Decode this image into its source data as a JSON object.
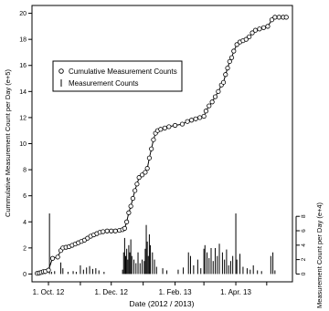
{
  "chart_data": {
    "type": "line",
    "xlabel": "Date (2012 / 2013)",
    "ylabel_left": "Cummulative Measurement Count per Day (e+5)",
    "ylabel_right": "Measurement Count per Day (e+4)",
    "x_ticks": [
      {
        "date": "2012-10-01",
        "label": "1. Oct. 12"
      },
      {
        "date": "2012-12-01",
        "label": "1. Dec. 12"
      },
      {
        "date": "2013-02-01",
        "label": "1. Feb. 13"
      },
      {
        "date": "2013-04-01",
        "label": "1. Apr. 13"
      }
    ],
    "x_minor_ticks": [
      "2012-11-01",
      "2013-01-01",
      "2013-03-01",
      "2013-05-01"
    ],
    "xlim": [
      "2012-09-15",
      "2013-05-26"
    ],
    "ylim_left": [
      -0.6,
      20.6
    ],
    "yticks_left": [
      0,
      2,
      4,
      6,
      8,
      10,
      12,
      14,
      16,
      18,
      20
    ],
    "yticks_right": [
      0,
      2,
      4,
      6,
      8
    ],
    "right_axis_span_left_units": [
      0,
      4.7
    ],
    "right_axis_max": 8.5,
    "legend": {
      "position": "top-left",
      "entries": [
        {
          "symbol": "circle",
          "label": "Cumulative Measurement Counts"
        },
        {
          "symbol": "bar",
          "label": "Measurement Counts"
        }
      ]
    },
    "series": [
      {
        "name": "Cumulative Measurement Counts",
        "style": "line-with-circles",
        "points": [
          [
            "2012-09-20",
            0.05
          ],
          [
            "2012-09-22",
            0.08
          ],
          [
            "2012-09-24",
            0.12
          ],
          [
            "2012-09-26",
            0.18
          ],
          [
            "2012-09-28",
            0.2
          ],
          [
            "2012-10-01",
            0.3
          ],
          [
            "2012-10-05",
            1.2
          ],
          [
            "2012-10-10",
            1.3
          ],
          [
            "2012-10-13",
            1.8
          ],
          [
            "2012-10-15",
            2.0
          ],
          [
            "2012-10-18",
            2.05
          ],
          [
            "2012-10-21",
            2.1
          ],
          [
            "2012-10-24",
            2.2
          ],
          [
            "2012-10-27",
            2.3
          ],
          [
            "2012-10-30",
            2.4
          ],
          [
            "2012-11-02",
            2.5
          ],
          [
            "2012-11-05",
            2.6
          ],
          [
            "2012-11-08",
            2.75
          ],
          [
            "2012-11-11",
            2.9
          ],
          [
            "2012-11-14",
            3.0
          ],
          [
            "2012-11-17",
            3.1
          ],
          [
            "2012-11-20",
            3.2
          ],
          [
            "2012-11-23",
            3.25
          ],
          [
            "2012-11-27",
            3.3
          ],
          [
            "2012-12-01",
            3.3
          ],
          [
            "2012-12-05",
            3.3
          ],
          [
            "2012-12-09",
            3.35
          ],
          [
            "2012-12-12",
            3.4
          ],
          [
            "2012-12-14",
            3.5
          ],
          [
            "2012-12-16",
            4.0
          ],
          [
            "2012-12-18",
            4.7
          ],
          [
            "2012-12-20",
            5.2
          ],
          [
            "2012-12-22",
            5.8
          ],
          [
            "2012-12-24",
            6.4
          ],
          [
            "2012-12-26",
            6.9
          ],
          [
            "2012-12-28",
            7.4
          ],
          [
            "2012-12-31",
            7.6
          ],
          [
            "2013-01-03",
            7.8
          ],
          [
            "2013-01-05",
            8.1
          ],
          [
            "2013-01-07",
            8.9
          ],
          [
            "2013-01-09",
            9.6
          ],
          [
            "2013-01-11",
            10.3
          ],
          [
            "2013-01-13",
            10.8
          ],
          [
            "2013-01-15",
            11.0
          ],
          [
            "2013-01-18",
            11.1
          ],
          [
            "2013-01-22",
            11.2
          ],
          [
            "2013-01-26",
            11.3
          ],
          [
            "2013-02-01",
            11.4
          ],
          [
            "2013-02-08",
            11.5
          ],
          [
            "2013-02-13",
            11.7
          ],
          [
            "2013-02-17",
            11.8
          ],
          [
            "2013-02-21",
            11.9
          ],
          [
            "2013-02-25",
            12.0
          ],
          [
            "2013-03-01",
            12.1
          ],
          [
            "2013-03-03",
            12.5
          ],
          [
            "2013-03-06",
            12.9
          ],
          [
            "2013-03-09",
            13.2
          ],
          [
            "2013-03-12",
            13.6
          ],
          [
            "2013-03-15",
            14.0
          ],
          [
            "2013-03-18",
            14.5
          ],
          [
            "2013-03-20",
            14.7
          ],
          [
            "2013-03-22",
            15.3
          ],
          [
            "2013-03-24",
            15.8
          ],
          [
            "2013-03-26",
            16.3
          ],
          [
            "2013-03-28",
            16.6
          ],
          [
            "2013-03-30",
            17.1
          ],
          [
            "2013-04-02",
            17.6
          ],
          [
            "2013-04-05",
            17.8
          ],
          [
            "2013-04-08",
            17.9
          ],
          [
            "2013-04-11",
            18.0
          ],
          [
            "2013-04-14",
            18.2
          ],
          [
            "2013-04-17",
            18.5
          ],
          [
            "2013-04-20",
            18.7
          ],
          [
            "2013-04-24",
            18.8
          ],
          [
            "2013-04-28",
            18.9
          ],
          [
            "2013-05-02",
            19.0
          ],
          [
            "2013-05-06",
            19.5
          ],
          [
            "2013-05-09",
            19.7
          ],
          [
            "2013-05-13",
            19.7
          ],
          [
            "2013-05-17",
            19.7
          ],
          [
            "2013-05-20",
            19.7
          ]
        ]
      },
      {
        "name": "Measurement Counts",
        "style": "bars",
        "points": [
          [
            "2012-09-20",
            0.1
          ],
          [
            "2012-09-25",
            0.15
          ],
          [
            "2012-09-28",
            0.2
          ],
          [
            "2012-10-02",
            8.4
          ],
          [
            "2012-10-04",
            0.3
          ],
          [
            "2012-10-07",
            0.4
          ],
          [
            "2012-10-13",
            1.6
          ],
          [
            "2012-10-15",
            0.8
          ],
          [
            "2012-10-20",
            0.3
          ],
          [
            "2012-10-25",
            0.4
          ],
          [
            "2012-10-28",
            0.3
          ],
          [
            "2012-11-01",
            1.2
          ],
          [
            "2012-11-04",
            0.6
          ],
          [
            "2012-11-07",
            0.9
          ],
          [
            "2012-11-10",
            1.1
          ],
          [
            "2012-11-13",
            0.7
          ],
          [
            "2012-11-16",
            0.8
          ],
          [
            "2012-11-19",
            0.5
          ],
          [
            "2012-11-24",
            0.3
          ],
          [
            "2012-12-12",
            0.6
          ],
          [
            "2012-12-13",
            3.0
          ],
          [
            "2012-12-14",
            5.0
          ],
          [
            "2012-12-15",
            2.5
          ],
          [
            "2012-12-16",
            3.5
          ],
          [
            "2012-12-17",
            2.0
          ],
          [
            "2012-12-18",
            4.0
          ],
          [
            "2012-12-19",
            3.0
          ],
          [
            "2012-12-20",
            4.8
          ],
          [
            "2012-12-21",
            2.5
          ],
          [
            "2012-12-23",
            2.0
          ],
          [
            "2012-12-25",
            1.5
          ],
          [
            "2012-12-27",
            3.0
          ],
          [
            "2012-12-29",
            1.5
          ],
          [
            "2012-12-31",
            2.0
          ],
          [
            "2013-01-02",
            1.8
          ],
          [
            "2013-01-03",
            3.5
          ],
          [
            "2013-01-04",
            6.8
          ],
          [
            "2013-01-05",
            4.5
          ],
          [
            "2013-01-06",
            2.5
          ],
          [
            "2013-01-07",
            5.5
          ],
          [
            "2013-01-08",
            4.0
          ],
          [
            "2013-01-10",
            3.0
          ],
          [
            "2013-01-12",
            2.0
          ],
          [
            "2013-01-14",
            1.0
          ],
          [
            "2013-01-20",
            0.8
          ],
          [
            "2013-01-24",
            0.5
          ],
          [
            "2013-02-04",
            0.6
          ],
          [
            "2013-02-09",
            0.9
          ],
          [
            "2013-02-14",
            3.0
          ],
          [
            "2013-02-16",
            2.5
          ],
          [
            "2013-02-19",
            1.2
          ],
          [
            "2013-02-23",
            2.0
          ],
          [
            "2013-02-26",
            0.8
          ],
          [
            "2013-03-01",
            3.5
          ],
          [
            "2013-03-02",
            4.0
          ],
          [
            "2013-03-04",
            3.0
          ],
          [
            "2013-03-06",
            2.2
          ],
          [
            "2013-03-08",
            3.6
          ],
          [
            "2013-03-10",
            1.8
          ],
          [
            "2013-03-12",
            3.6
          ],
          [
            "2013-03-14",
            2.5
          ],
          [
            "2013-03-16",
            4.2
          ],
          [
            "2013-03-19",
            3.0
          ],
          [
            "2013-03-21",
            2.0
          ],
          [
            "2013-03-23",
            3.4
          ],
          [
            "2013-03-25",
            1.2
          ],
          [
            "2013-03-27",
            1.8
          ],
          [
            "2013-03-29",
            2.5
          ],
          [
            "2013-04-01",
            8.4
          ],
          [
            "2013-04-02",
            2.0
          ],
          [
            "2013-04-05",
            2.8
          ],
          [
            "2013-04-08",
            1.0
          ],
          [
            "2013-04-12",
            0.8
          ],
          [
            "2013-04-15",
            0.6
          ],
          [
            "2013-04-18",
            1.2
          ],
          [
            "2013-04-22",
            0.5
          ],
          [
            "2013-04-26",
            0.4
          ],
          [
            "2013-05-05",
            2.5
          ],
          [
            "2013-05-07",
            3.0
          ],
          [
            "2013-05-09",
            0.5
          ]
        ]
      }
    ]
  }
}
